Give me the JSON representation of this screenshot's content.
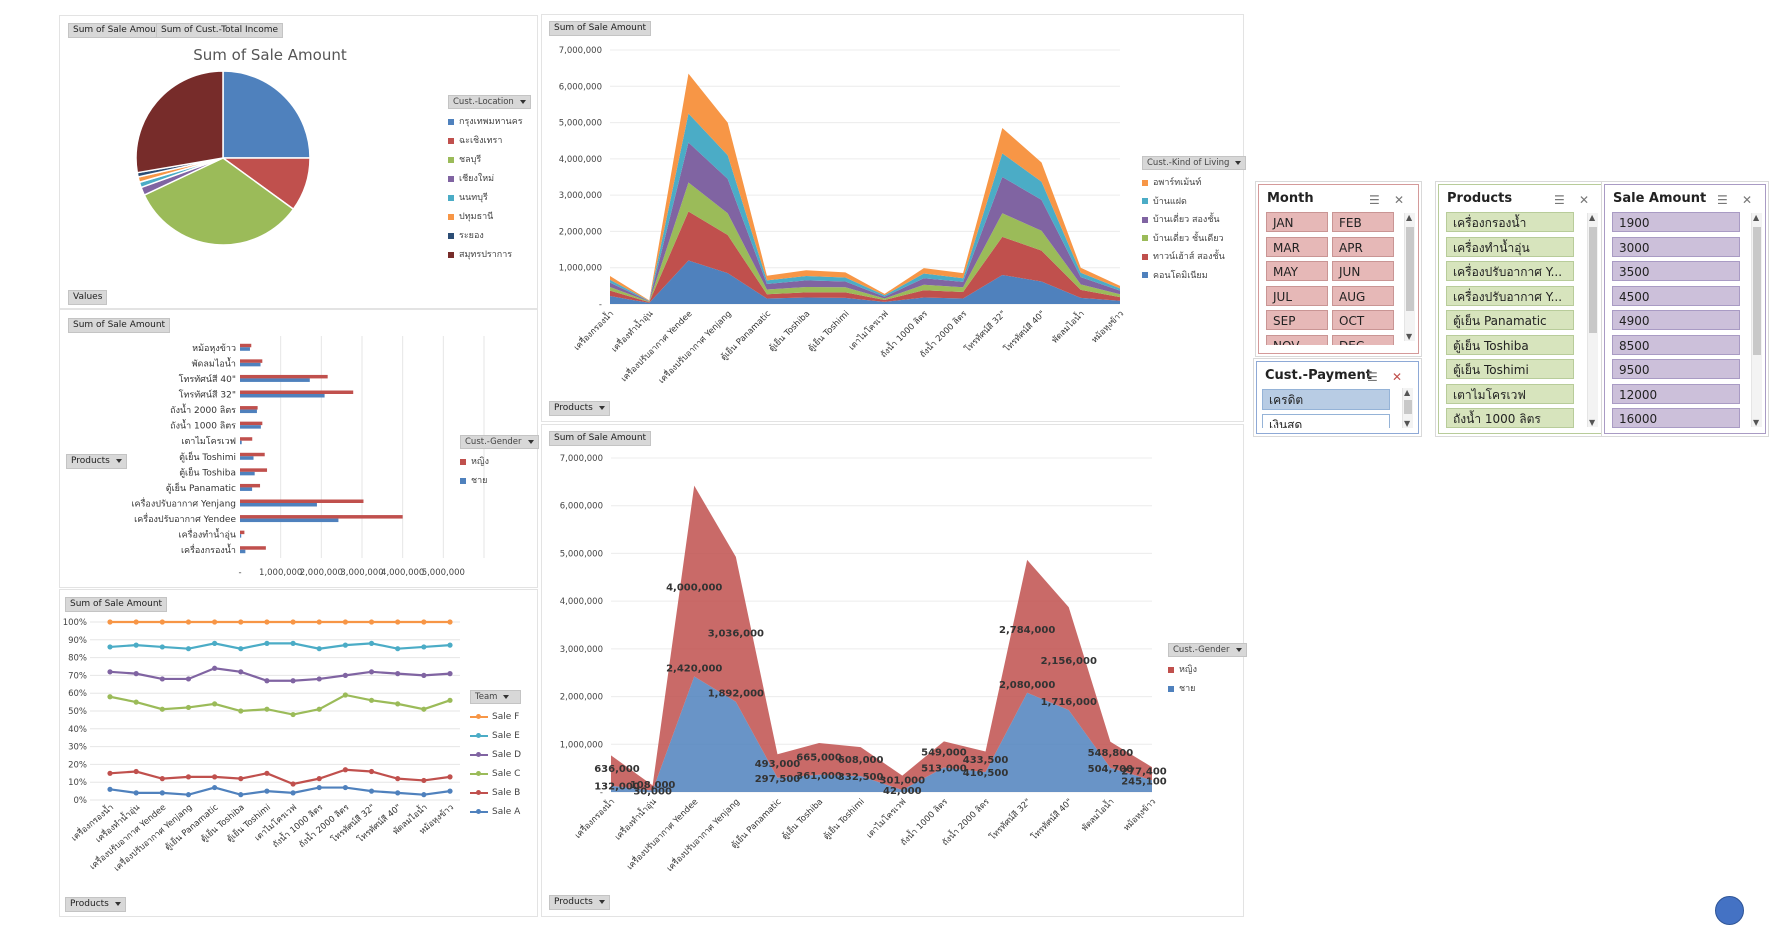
{
  "buttons": {
    "sum_sale_amount": "Sum of Sale Amount",
    "sum_total_income": "Sum of Cust.-Total Income",
    "values": "Values",
    "products": "Products"
  },
  "colors": {
    "blue": "#4f81bd",
    "red": "#c0504d",
    "green": "#9bbb59",
    "purple": "#8064a2",
    "cyan": "#4bacc6",
    "orange": "#f79646",
    "darkblue": "#2c4d75",
    "maroon": "#772c2a"
  },
  "chart_data": [
    {
      "type": "pie",
      "title": "Sum of Sale Amount",
      "legend_title": "Cust.-Location",
      "categories": [
        "กรุงเทพมหานคร",
        "ฉะเชิงเทรา",
        "ชลบุรี",
        "เชียงใหม่",
        "นนทบุรี",
        "ปทุมธานี",
        "ระยอง",
        "สมุทรปราการ"
      ],
      "values": [
        25,
        10,
        33,
        1.5,
        1,
        1,
        0.8,
        27.7
      ],
      "colors": [
        "#4f81bd",
        "#c0504d",
        "#9bbb59",
        "#8064a2",
        "#4bacc6",
        "#f79646",
        "#2c4d75",
        "#772c2a"
      ]
    },
    {
      "type": "area",
      "stacked": true,
      "button": "Sum of Sale Amount",
      "legend_title": "Cust.-Kind of Living",
      "categories": [
        "เครื่องกรองน้ำ",
        "เครื่องทำน้ำอุ่น",
        "เครื่องปรับอากาศ Yendee",
        "เครื่องปรับอากาศ Yenjang",
        "ตู้เย็น Panamatic",
        "ตู้เย็น Toshiba",
        "ตู้เย็น Toshimi",
        "เตาไมโครเวฟ",
        "ถังน้ำ 1000 ลิตร",
        "ถังน้ำ 2000 ลิตร",
        "โทรทัศน์สี 32\"",
        "โทรทัศน์สี 40\"",
        "พัดลมไอน้ำ",
        "หม้อหุงข้าว"
      ],
      "ylim": [
        0,
        7000000
      ],
      "yticks": [
        "-",
        "1,000,000",
        "2,000,000",
        "3,000,000",
        "4,000,000",
        "5,000,000",
        "6,000,000",
        "7,000,000"
      ],
      "series": [
        {
          "name": "คอนโดมิเนียม",
          "color": "#4f81bd",
          "values": [
            220000,
            30000,
            1200000,
            850000,
            150000,
            180000,
            170000,
            60000,
            180000,
            150000,
            800000,
            620000,
            170000,
            90000
          ]
        },
        {
          "name": "ทาวน์เฮ้าส์ สองชั้น",
          "color": "#c0504d",
          "values": [
            150000,
            20000,
            1350000,
            1050000,
            120000,
            140000,
            150000,
            50000,
            200000,
            180000,
            1050000,
            850000,
            220000,
            100000
          ]
        },
        {
          "name": "บ้านเดี่ยว ชั้นเดียว",
          "color": "#9bbb59",
          "values": [
            100000,
            15000,
            800000,
            600000,
            130000,
            150000,
            140000,
            40000,
            150000,
            130000,
            650000,
            550000,
            150000,
            80000
          ]
        },
        {
          "name": "บ้านเดี่ยว สองชั้น",
          "color": "#8064a2",
          "values": [
            120000,
            10000,
            1100000,
            950000,
            150000,
            180000,
            160000,
            50000,
            180000,
            150000,
            1000000,
            850000,
            200000,
            100000
          ]
        },
        {
          "name": "บ้านแฝด",
          "color": "#4bacc6",
          "values": [
            80000,
            10000,
            800000,
            650000,
            100000,
            120000,
            110000,
            40000,
            130000,
            100000,
            650000,
            500000,
            120000,
            60000
          ]
        },
        {
          "name": "อพาร์ทเม้นท์",
          "color": "#f79646",
          "values": [
            100000,
            15000,
            1100000,
            900000,
            130000,
            160000,
            140000,
            40000,
            150000,
            140000,
            700000,
            530000,
            140000,
            70000
          ]
        }
      ]
    },
    {
      "type": "bar",
      "orientation": "horizontal",
      "button": "Sum of Sale Amount",
      "legend_title": "Cust.-Gender",
      "categories": [
        "หม้อหุงข้าว",
        "พัดลมไอน้ำ",
        "โทรทัศน์สี 40\"",
        "โทรทัศน์สี 32\"",
        "ถังน้ำ 2000 ลิตร",
        "ถังน้ำ 1000 ลิตร",
        "เตาไมโครเวฟ",
        "ตู้เย็น Toshimi",
        "ตู้เย็น Toshiba",
        "ตู้เย็น Panamatic",
        "เครื่องปรับอากาศ Yenjang",
        "เครื่องปรับอากาศ Yendee",
        "เครื่องทำน้ำอุ่น",
        "เครื่องกรองน้ำ"
      ],
      "xlim": [
        0,
        6000000
      ],
      "xticks": [
        "-",
        "1,000,000",
        "2,000,000",
        "3,000,000",
        "4,000,000",
        "5,000,000"
      ],
      "series": [
        {
          "name": "หญิง",
          "color": "#c0504d",
          "values": [
            277400,
            548800,
            2156000,
            2784000,
            433500,
            549000,
            301000,
            608000,
            665000,
            493000,
            3036000,
            4000000,
            108000,
            636000
          ]
        },
        {
          "name": "ชาย",
          "color": "#4f81bd",
          "values": [
            245100,
            504700,
            1716000,
            2080000,
            416500,
            513000,
            42000,
            332500,
            361000,
            297500,
            1892000,
            2420000,
            30000,
            132000
          ]
        }
      ]
    },
    {
      "type": "line",
      "button": "Sum of Sale Amount",
      "legend_title": "Team",
      "categories": [
        "เครื่องกรองน้ำ",
        "เครื่องทำน้ำอุ่น",
        "เครื่องปรับอากาศ Yendee",
        "เครื่องปรับอากาศ Yenjang",
        "ตู้เย็น Panamatic",
        "ตู้เย็น Toshiba",
        "ตู้เย็น Toshimi",
        "เตาไมโครเวฟ",
        "ถังน้ำ 1000 ลิตร",
        "ถังน้ำ 2000 ลิตร",
        "โทรทัศน์สี 32\"",
        "โทรทัศน์สี 40\"",
        "พัดลมไอน้ำ",
        "หม้อหุงข้าว"
      ],
      "ylim": [
        0,
        100
      ],
      "yticks": [
        "0%",
        "10%",
        "20%",
        "30%",
        "40%",
        "50%",
        "60%",
        "70%",
        "80%",
        "90%",
        "100%"
      ],
      "series": [
        {
          "name": "Sale F",
          "color": "#f79646",
          "values": [
            100,
            100,
            100,
            100,
            100,
            100,
            100,
            100,
            100,
            100,
            100,
            100,
            100,
            100
          ]
        },
        {
          "name": "Sale E",
          "color": "#4bacc6",
          "values": [
            86,
            87,
            86,
            85,
            88,
            85,
            88,
            88,
            85,
            87,
            88,
            85,
            86,
            87
          ]
        },
        {
          "name": "Sale D",
          "color": "#8064a2",
          "values": [
            72,
            71,
            68,
            68,
            74,
            72,
            67,
            67,
            68,
            70,
            72,
            71,
            70,
            71
          ]
        },
        {
          "name": "Sale C",
          "color": "#9bbb59",
          "values": [
            58,
            55,
            51,
            52,
            54,
            50,
            51,
            48,
            51,
            59,
            56,
            54,
            51,
            56
          ]
        },
        {
          "name": "Sale B",
          "color": "#c0504d",
          "values": [
            15,
            16,
            12,
            13,
            13,
            12,
            15,
            9,
            12,
            17,
            16,
            12,
            11,
            13
          ]
        },
        {
          "name": "Sale A",
          "color": "#4f81bd",
          "values": [
            6,
            4,
            4,
            3,
            7,
            3,
            5,
            4,
            7,
            7,
            5,
            4,
            3,
            5
          ]
        }
      ]
    },
    {
      "type": "area",
      "stacked": true,
      "button": "Sum of Sale Amount",
      "legend_title": "Cust.-Gender",
      "categories": [
        "เครื่องกรองน้ำ",
        "เครื่องทำน้ำอุ่น",
        "เครื่องปรับอากาศ Yendee",
        "เครื่องปรับอากาศ Yenjang",
        "ตู้เย็น Panamatic",
        "ตู้เย็น Toshiba",
        "ตู้เย็น Toshimi",
        "เตาไมโครเวฟ",
        "ถังน้ำ 1000 ลิตร",
        "ถังน้ำ 2000 ลิตร",
        "โทรทัศน์สี 32\"",
        "โทรทัศน์สี 40\"",
        "พัดลมไอน้ำ",
        "หม้อหุงข้าว"
      ],
      "ylim": [
        0,
        7000000
      ],
      "yticks": [
        "-",
        "1,000,000",
        "2,000,000",
        "3,000,000",
        "4,000,000",
        "5,000,000",
        "6,000,000",
        "7,000,000"
      ],
      "series": [
        {
          "name": "ชาย",
          "color": "#4f81bd",
          "values": [
            132000,
            30000,
            2420000,
            1892000,
            297500,
            361000,
            332500,
            42000,
            513000,
            416500,
            2080000,
            1716000,
            504700,
            245100
          ],
          "labels": [
            "132,000",
            "30,000",
            "2,420,000",
            "1,892,000",
            "297,500",
            "361,000",
            "332,500",
            "42,000",
            "513,000",
            "416,500",
            "2,080,000",
            "1,716,000",
            "504,700",
            "245,100"
          ]
        },
        {
          "name": "หญิง",
          "color": "#c0504d",
          "values": [
            636000,
            108000,
            4000000,
            3036000,
            493000,
            665000,
            608000,
            301000,
            549000,
            433500,
            2784000,
            2156000,
            548800,
            277400
          ],
          "labels": [
            "636,000",
            "108,000",
            "4,000,000",
            "3,036,000",
            "493,000",
            "665,000",
            "608,000",
            "301,000",
            "549,000",
            "433,500",
            "2,784,000",
            "2,156,000",
            "548,800",
            "277,400"
          ]
        }
      ]
    }
  ],
  "slicers": {
    "month": {
      "title": "Month",
      "items": [
        "JAN",
        "FEB",
        "MAR",
        "APR",
        "MAY",
        "JUN",
        "JUL",
        "AUG",
        "SEP",
        "OCT",
        "NOV",
        "DEC"
      ]
    },
    "payment": {
      "title": "Cust.-Payment",
      "items": [
        "เครดิต",
        "เงินสด"
      ]
    },
    "products": {
      "title": "Products",
      "items": [
        "เครื่องกรองน้ำ",
        "เครื่องทำน้ำอุ่น",
        "เครื่องปรับอากาศ Y...",
        "เครื่องปรับอากาศ Y...",
        "ตู้เย็น Panamatic",
        "ตู้เย็น Toshiba",
        "ตู้เย็น Toshimi",
        "เตาไมโครเวฟ",
        "ถังน้ำ 1000 ลิตร"
      ]
    },
    "sale_amount": {
      "title": "Sale Amount",
      "items": [
        "1900",
        "3000",
        "3500",
        "4500",
        "4900",
        "8500",
        "9500",
        "12000",
        "16000"
      ]
    }
  }
}
